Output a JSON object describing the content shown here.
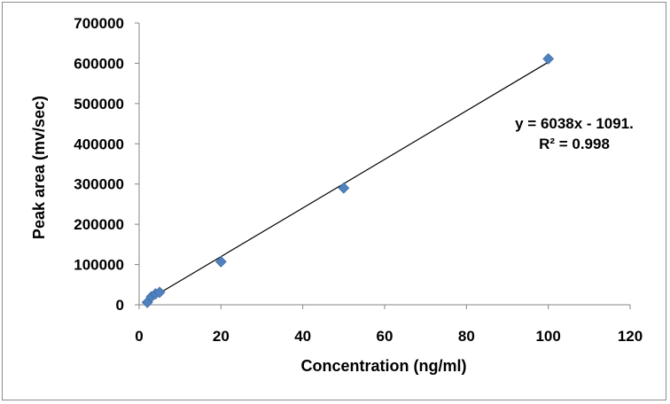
{
  "chart_data": {
    "type": "scatter",
    "title": "",
    "xlabel": "Concentration (ng/ml)",
    "ylabel": "Peak area (mv/sec)",
    "xlim": [
      0,
      120
    ],
    "ylim": [
      0,
      700000
    ],
    "x_ticks": [
      "0",
      "20",
      "40",
      "60",
      "80",
      "100",
      "120"
    ],
    "y_ticks": [
      "0",
      "100000",
      "200000",
      "300000",
      "400000",
      "500000",
      "600000",
      "700000"
    ],
    "grid": false,
    "legend": "none",
    "marker_color": "#4F81BD",
    "trendline_color": "#000000",
    "series": [
      {
        "x": [
          2,
          3,
          4,
          5,
          20,
          50,
          100
        ],
        "y": [
          6000,
          20000,
          27000,
          31000,
          107000,
          290000,
          611000
        ]
      }
    ],
    "trendline": {
      "slope": 6038,
      "intercept": -1091,
      "x_range": [
        2,
        100
      ]
    },
    "annotations": {
      "equation": "y = 6038x - 1091.",
      "r_squared": "R² = 0.998"
    }
  }
}
